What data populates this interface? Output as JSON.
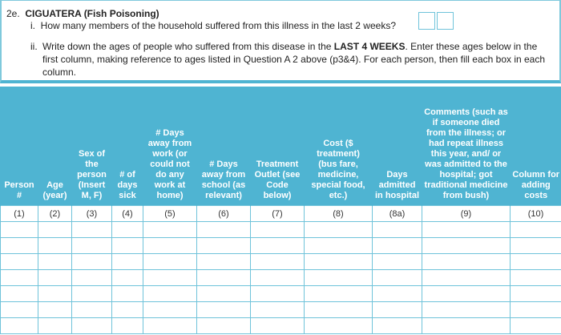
{
  "question": {
    "number": "2e.",
    "title": "CIGUATERA (Fish Poisoning)",
    "part_i": {
      "num": "i.",
      "text": "How many members of the household suffered from this illness in the last 2 weeks?"
    },
    "part_ii": {
      "num": "ii.",
      "text_before": "Write down the ages of people who suffered from this disease in the ",
      "text_bold": "LAST 4 WEEKS",
      "text_after": ". Enter these ages below in the first column, making reference to ages listed in Question A 2 above (p3&4). For each person, then fill each box in each column."
    }
  },
  "table": {
    "headers": [
      "Person #",
      "Age (year)",
      "Sex of the person (Insert M, F)",
      "# of days sick",
      "# Days away from work (or could not do any work at home)",
      "# Days away from school (as relevant)",
      "Treatment Outlet (see Code below)",
      "Cost ($ treatment) (bus fare, medicine, special food, etc.)",
      "Days admitted in hospital",
      "Comments (such as if someone died from the illness; or had repeat illness this year, and/ or was admitted to the hospital; got traditional medicine from bush)",
      "Column for adding costs"
    ],
    "column_numbers": [
      "(1)",
      "(2)",
      "(3)",
      "(4)",
      "(5)",
      "(6)",
      "(7)",
      "(8)",
      "(8a)",
      "(9)",
      "(10)"
    ],
    "empty_rows": 7
  },
  "colors": {
    "header_bg": "#4fb4d2",
    "grid": "#6fc3da"
  }
}
